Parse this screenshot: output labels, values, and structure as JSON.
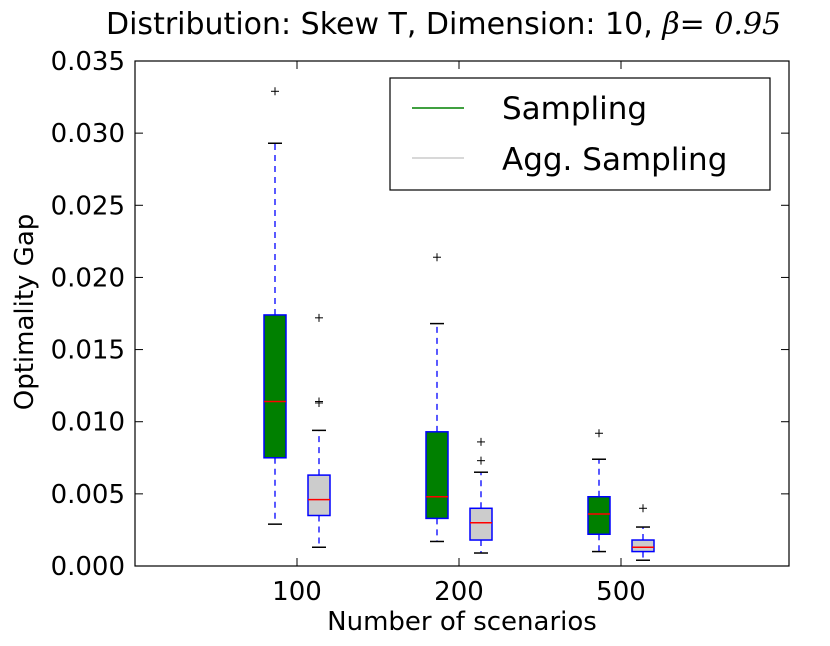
{
  "chart_data": {
    "type": "boxplot",
    "title": "Distribution: Skew T, Dimension: 10,",
    "title_math_symbol": "β",
    "title_math_rest": "= 0.95",
    "xlabel": "Number of scenarios",
    "ylabel": "Optimality Gap",
    "ylim": [
      0,
      0.035
    ],
    "yticks": [
      "0.000",
      "0.005",
      "0.010",
      "0.015",
      "0.020",
      "0.025",
      "0.030",
      "0.035"
    ],
    "categories": [
      "100",
      "200",
      "500"
    ],
    "legend_position": "top-right",
    "colors": {
      "Sampling": "#008000",
      "Agg. Sampling": "#cccccc",
      "box_edge": "#0000ff",
      "median": "#ff0000",
      "whisker": "#0000ff",
      "cap": "#000000",
      "flier": "#000000",
      "legend_line_sampling": "#008000",
      "legend_line_agg": "#cccccc"
    },
    "series": [
      {
        "name": "Sampling",
        "boxes": [
          {
            "category": "100",
            "low": 0.0029,
            "q1": 0.0075,
            "median": 0.0114,
            "q3": 0.0174,
            "high": 0.0293,
            "fliers": [
              0.0329
            ]
          },
          {
            "category": "200",
            "low": 0.0017,
            "q1": 0.0033,
            "median": 0.0048,
            "q3": 0.0093,
            "high": 0.0168,
            "fliers": [
              0.0214
            ]
          },
          {
            "category": "500",
            "low": 0.001,
            "q1": 0.0022,
            "median": 0.0036,
            "q3": 0.0048,
            "high": 0.0074,
            "fliers": [
              0.0092
            ]
          }
        ]
      },
      {
        "name": "Agg. Sampling",
        "boxes": [
          {
            "category": "100",
            "low": 0.0013,
            "q1": 0.0035,
            "median": 0.0046,
            "q3": 0.0063,
            "high": 0.0094,
            "fliers": [
              0.0113,
              0.0114,
              0.0172
            ]
          },
          {
            "category": "200",
            "low": 0.0009,
            "q1": 0.0018,
            "median": 0.003,
            "q3": 0.004,
            "high": 0.0065,
            "fliers": [
              0.0073,
              0.0086
            ]
          },
          {
            "category": "500",
            "low": 0.0004,
            "q1": 0.001,
            "median": 0.0013,
            "q3": 0.0018,
            "high": 0.0027,
            "fliers": [
              0.004
            ]
          }
        ]
      }
    ]
  }
}
